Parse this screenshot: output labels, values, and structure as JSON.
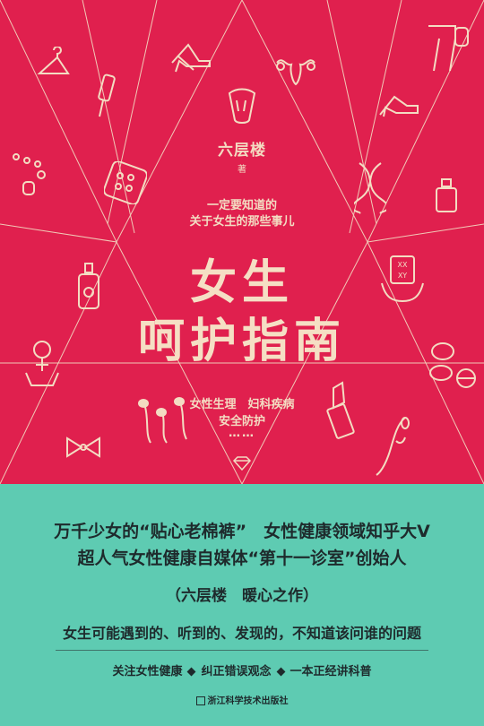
{
  "cover": {
    "author": "六层楼",
    "author_mark": "著",
    "tagline_line1": "一定要知道的",
    "tagline_line2": "关于女生的那些事儿",
    "title_line1": "女生",
    "title_line2": "呵护指南",
    "topics_line1": "女性生理　妇科疾病",
    "topics_line2": "安全防护",
    "topics_ellipsis": "……",
    "icons": [
      "hanger-icon",
      "comb-icon",
      "necklace-icon",
      "pill-pack-icon",
      "high-heels-icon",
      "strawberry-icon",
      "uterus-icon",
      "dna-icon",
      "legs-icon",
      "stiletto-icon",
      "perfume-icon",
      "perfume-bottle-icon",
      "female-symbol-icon",
      "sperm-icon",
      "bow-tie-icon",
      "chromosome-card-icon",
      "pills-icon",
      "lipstick-icon",
      "hand-icon",
      "diamond-icon"
    ],
    "colors": {
      "top_bg": "#e0204e",
      "bottom_bg": "#5ecbb2",
      "line_color": "#f3dcc2"
    }
  },
  "band": {
    "line1": "万千少女的“贴心老棉裤”　女性健康领域知乎大V",
    "line2": "超人气女性健康自媒体“第十一诊室”创始人",
    "line3": "（六层楼　暖心之作）",
    "line4": "女生可能遇到的、听到的、发现的，不知道该问谁的问题",
    "features": [
      "关注女性健康",
      "纠正错误观念",
      "一本正经讲科普"
    ],
    "publisher": "浙江科学技术出版社"
  }
}
